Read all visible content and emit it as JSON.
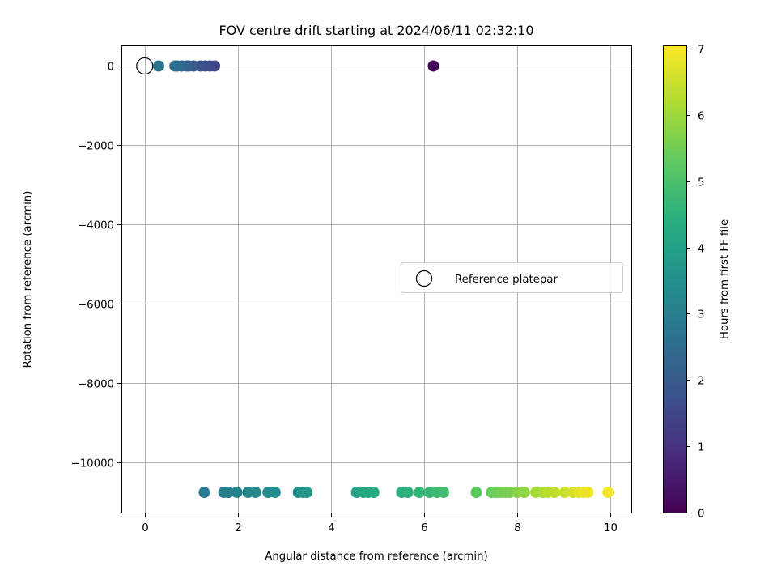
{
  "chart_data": {
    "type": "scatter",
    "title": "FOV centre drift starting at 2024/06/11 02:32:10",
    "xlabel": "Angular distance from reference (arcmin)",
    "ylabel": "Rotation from reference (arcmin)",
    "xlim": [
      -0.5,
      10.45
    ],
    "ylim": [
      -11270,
      520
    ],
    "xticks": [
      0,
      2,
      4,
      6,
      8,
      10
    ],
    "yticks": [
      0,
      -2000,
      -4000,
      -6000,
      -8000,
      -10000
    ],
    "xtick_labels": [
      "0",
      "2",
      "4",
      "6",
      "8",
      "10"
    ],
    "ytick_labels": [
      "0",
      "−2000",
      "−4000",
      "−6000",
      "−8000",
      "−10000"
    ],
    "grid": true,
    "colormap": "viridis",
    "colorbar": {
      "label": "Hours from first FF file",
      "range": [
        0,
        7.05
      ],
      "ticks": [
        0,
        1,
        2,
        3,
        4,
        5,
        6,
        7
      ],
      "tick_labels": [
        "0",
        "1",
        "2",
        "3",
        "4",
        "5",
        "6",
        "7"
      ]
    },
    "legend": {
      "placement": "center-right",
      "entries": [
        {
          "label": "Reference platepar",
          "marker": "open-circle"
        }
      ]
    },
    "reference_point": {
      "x": 0,
      "y": 0
    },
    "points": [
      {
        "x": 6.2,
        "y": 0,
        "hours": 0.0
      },
      {
        "x": 1.5,
        "y": 0,
        "hours": 1.45
      },
      {
        "x": 1.4,
        "y": 0,
        "hours": 1.55
      },
      {
        "x": 1.3,
        "y": 0,
        "hours": 1.65
      },
      {
        "x": 1.2,
        "y": 0,
        "hours": 1.75
      },
      {
        "x": 1.05,
        "y": 0,
        "hours": 1.9
      },
      {
        "x": 0.95,
        "y": 0,
        "hours": 2.05
      },
      {
        "x": 0.9,
        "y": 0,
        "hours": 2.2
      },
      {
        "x": 0.8,
        "y": 0,
        "hours": 2.35
      },
      {
        "x": 0.7,
        "y": 0,
        "hours": 2.5
      },
      {
        "x": 0.65,
        "y": 0,
        "hours": 2.6
      },
      {
        "x": 0.3,
        "y": 0,
        "hours": 2.75
      },
      {
        "x": 1.28,
        "y": -10760,
        "hours": 2.9
      },
      {
        "x": 1.7,
        "y": -10760,
        "hours": 2.98
      },
      {
        "x": 1.8,
        "y": -10760,
        "hours": 3.02
      },
      {
        "x": 1.98,
        "y": -10760,
        "hours": 3.1
      },
      {
        "x": 2.22,
        "y": -10760,
        "hours": 3.2
      },
      {
        "x": 2.38,
        "y": -10760,
        "hours": 3.28
      },
      {
        "x": 2.65,
        "y": -10760,
        "hours": 3.38
      },
      {
        "x": 2.8,
        "y": -10760,
        "hours": 3.46
      },
      {
        "x": 3.3,
        "y": -10760,
        "hours": 3.58
      },
      {
        "x": 3.4,
        "y": -10760,
        "hours": 3.66
      },
      {
        "x": 3.48,
        "y": -10760,
        "hours": 3.74
      },
      {
        "x": 4.55,
        "y": -10760,
        "hours": 4.05
      },
      {
        "x": 4.7,
        "y": -10760,
        "hours": 4.12
      },
      {
        "x": 4.8,
        "y": -10760,
        "hours": 4.18
      },
      {
        "x": 4.92,
        "y": -10760,
        "hours": 4.25
      },
      {
        "x": 5.52,
        "y": -10760,
        "hours": 4.45
      },
      {
        "x": 5.65,
        "y": -10760,
        "hours": 4.52
      },
      {
        "x": 5.9,
        "y": -10760,
        "hours": 4.6
      },
      {
        "x": 6.12,
        "y": -10760,
        "hours": 4.68
      },
      {
        "x": 6.28,
        "y": -10760,
        "hours": 4.75
      },
      {
        "x": 6.42,
        "y": -10760,
        "hours": 4.82
      },
      {
        "x": 7.12,
        "y": -10760,
        "hours": 5.25
      },
      {
        "x": 7.45,
        "y": -10760,
        "hours": 5.4
      },
      {
        "x": 7.55,
        "y": -10760,
        "hours": 5.45
      },
      {
        "x": 7.65,
        "y": -10760,
        "hours": 5.5
      },
      {
        "x": 7.75,
        "y": -10760,
        "hours": 5.55
      },
      {
        "x": 7.85,
        "y": -10760,
        "hours": 5.6
      },
      {
        "x": 8.0,
        "y": -10760,
        "hours": 5.75
      },
      {
        "x": 8.15,
        "y": -10760,
        "hours": 5.85
      },
      {
        "x": 8.4,
        "y": -10760,
        "hours": 6.05
      },
      {
        "x": 8.55,
        "y": -10760,
        "hours": 6.15
      },
      {
        "x": 8.65,
        "y": -10760,
        "hours": 6.25
      },
      {
        "x": 8.8,
        "y": -10760,
        "hours": 6.35
      },
      {
        "x": 9.02,
        "y": -10760,
        "hours": 6.5
      },
      {
        "x": 9.2,
        "y": -10760,
        "hours": 6.6
      },
      {
        "x": 9.32,
        "y": -10760,
        "hours": 6.72
      },
      {
        "x": 9.42,
        "y": -10760,
        "hours": 6.82
      },
      {
        "x": 9.52,
        "y": -10760,
        "hours": 6.9
      },
      {
        "x": 9.95,
        "y": -10760,
        "hours": 7.0
      }
    ]
  }
}
